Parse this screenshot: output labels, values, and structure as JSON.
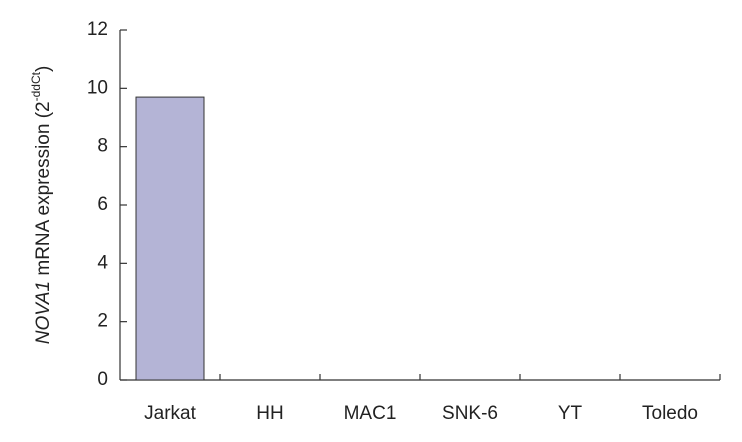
{
  "chart_data": {
    "type": "bar",
    "ylabel": {
      "gene": "NOVA1",
      "text": " mRNA expression (2",
      "superscript": "-ddCt",
      "close": ")"
    },
    "categories": [
      "Jarkat",
      "HH",
      "MAC1",
      "SNK-6",
      "YT",
      "Toledo"
    ],
    "values": [
      9.7,
      0,
      0,
      0,
      0,
      0
    ],
    "color": "#b4b4d6",
    "ylim": [
      0,
      12
    ],
    "yticks": [
      0,
      2,
      4,
      6,
      8,
      10,
      12
    ],
    "grid": false
  }
}
